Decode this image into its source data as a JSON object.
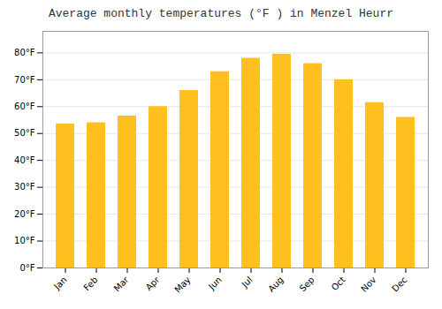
{
  "chart_data": {
    "type": "bar",
    "title": "Average monthly temperatures (°F ) in Menzel Heurr",
    "categories": [
      "Jan",
      "Feb",
      "Mar",
      "Apr",
      "May",
      "Jun",
      "Jul",
      "Aug",
      "Sep",
      "Oct",
      "Nov",
      "Dec"
    ],
    "values": [
      53.5,
      54.0,
      56.5,
      60.0,
      66.0,
      73.0,
      78.0,
      79.5,
      76.0,
      70.0,
      61.5,
      56.0
    ],
    "color": "#FFC020",
    "ylim": [
      0,
      88
    ],
    "yticks": [
      {
        "value": 0,
        "label": "0°F"
      },
      {
        "value": 10,
        "label": "10°F"
      },
      {
        "value": 20,
        "label": "20°F"
      },
      {
        "value": 30,
        "label": "30°F"
      },
      {
        "value": 40,
        "label": "40°F"
      },
      {
        "value": 50,
        "label": "50°F"
      },
      {
        "value": 60,
        "label": "60°F"
      },
      {
        "value": 70,
        "label": "70°F"
      },
      {
        "value": 80,
        "label": "80°F"
      }
    ],
    "grid": true
  }
}
